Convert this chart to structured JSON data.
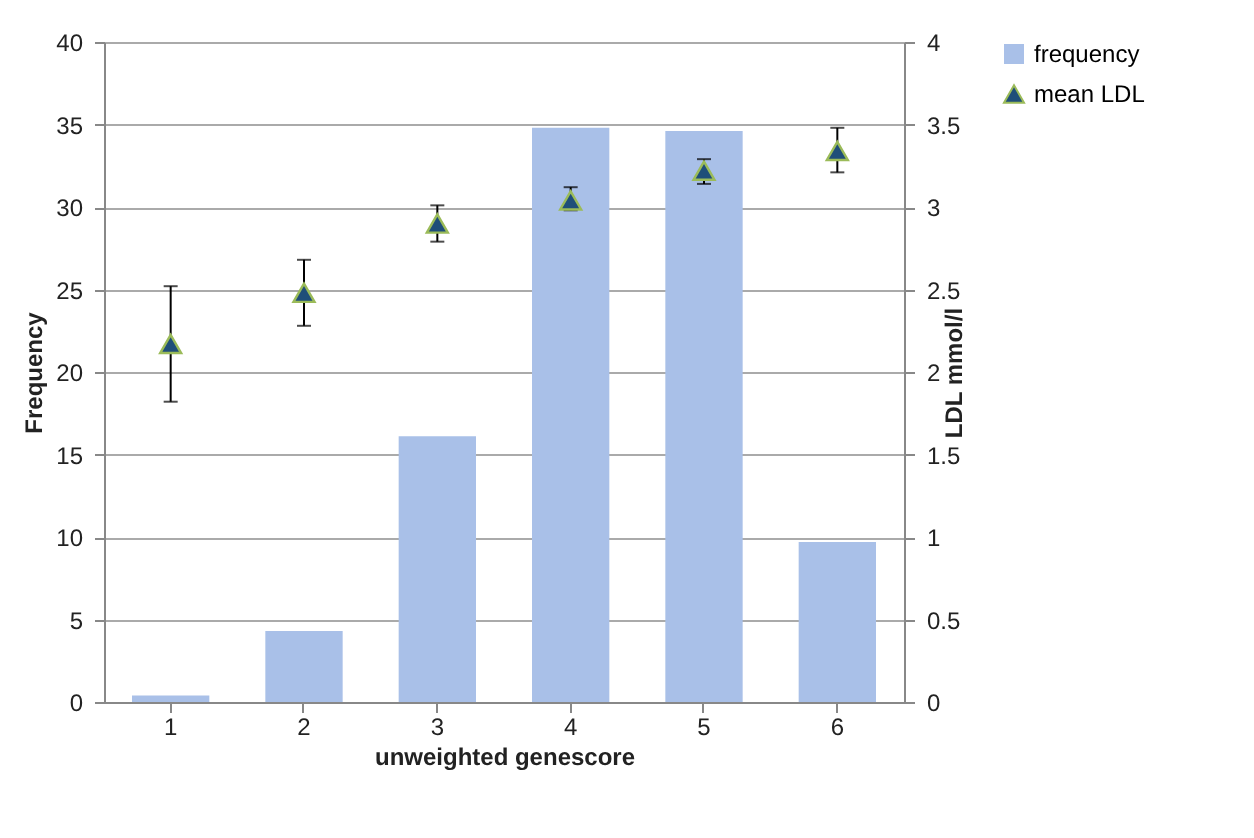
{
  "chart_data": {
    "type": "bar",
    "xlabel": "unweighted genescore",
    "ylabel": "Frequency",
    "y2label": "LDL mmol/l",
    "categories": [
      "1",
      "2",
      "3",
      "4",
      "5",
      "6"
    ],
    "series": [
      {
        "name": "frequency",
        "color": "#a9c0e8",
        "values": [
          0.4,
          4.3,
          16.1,
          34.8,
          34.6,
          9.7
        ]
      },
      {
        "name": "mean LDL",
        "type": "scatter",
        "axis": "y2",
        "color": "#1f4e79",
        "marker": "triangle",
        "values": [
          2.17,
          2.48,
          2.9,
          3.04,
          3.22,
          3.34
        ],
        "errors": [
          [
            1.82,
            2.52
          ],
          [
            2.28,
            2.68
          ],
          [
            2.79,
            3.01
          ],
          [
            2.98,
            3.12
          ],
          [
            3.14,
            3.29
          ],
          [
            3.21,
            3.48
          ]
        ]
      }
    ],
    "ylim": [
      0,
      40
    ],
    "yticks": [
      0,
      5,
      10,
      15,
      20,
      25,
      30,
      35,
      40
    ],
    "y2lim": [
      0,
      4
    ],
    "y2ticks": [
      0,
      0.5,
      1,
      1.5,
      2,
      2.5,
      3,
      3.5,
      4
    ],
    "grid": "y",
    "legend": "right"
  }
}
